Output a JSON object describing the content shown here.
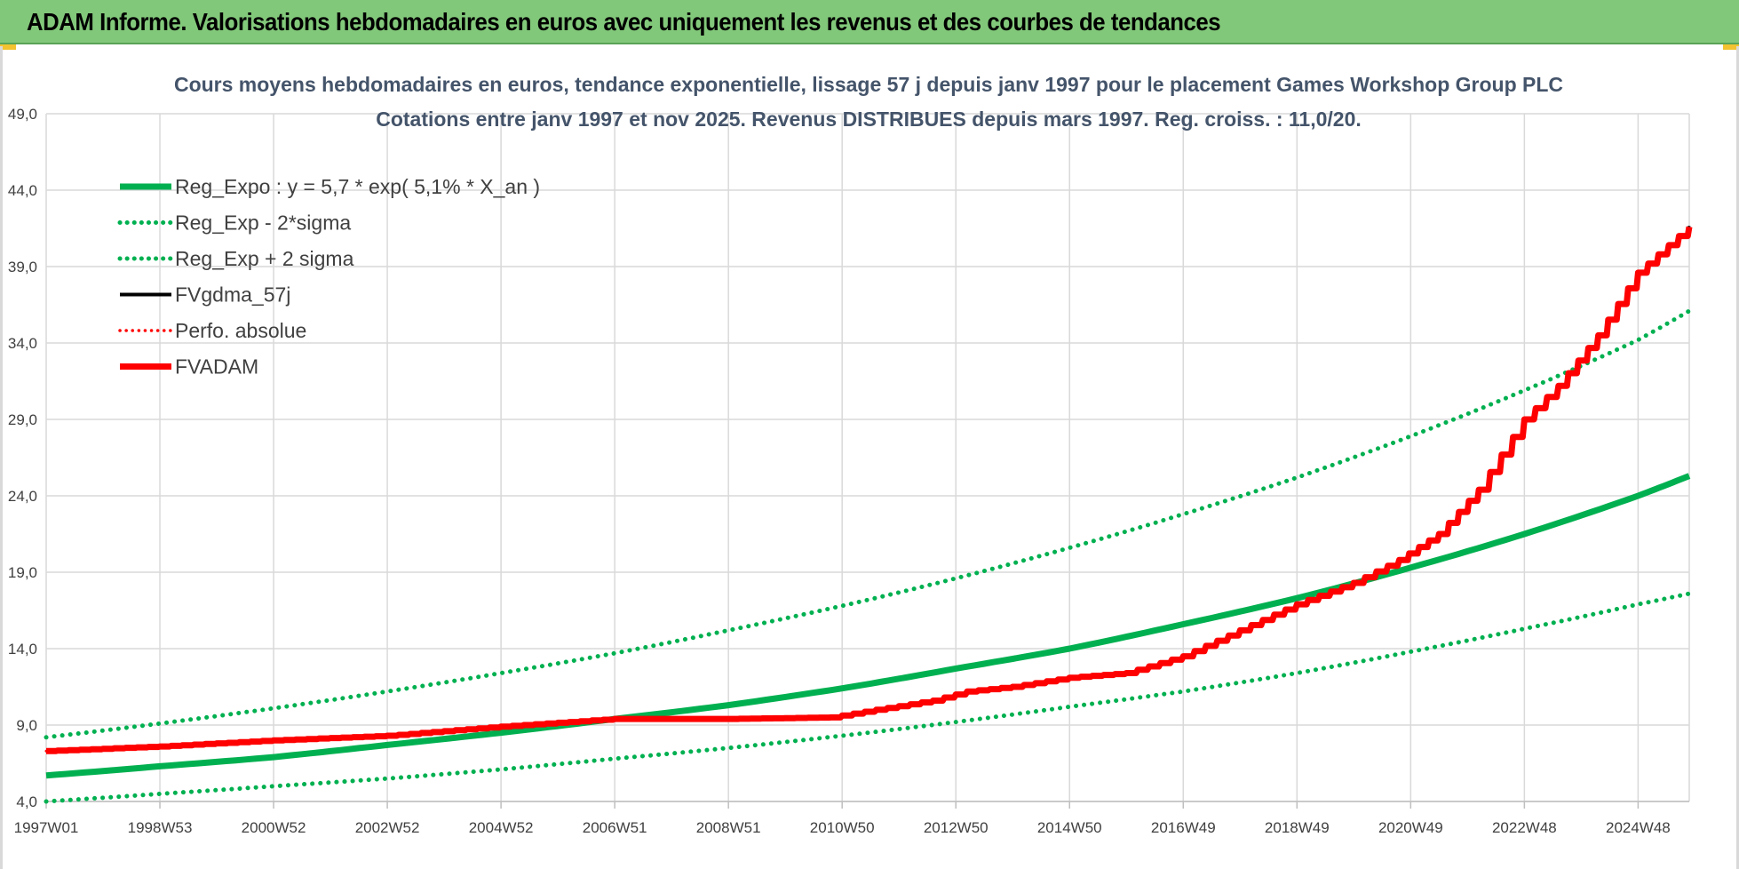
{
  "header": {
    "title": "ADAM Informe. Valorisations hebdomadaires en euros avec uniquement les revenus et des courbes de tendances"
  },
  "chart_data": {
    "type": "line",
    "title": [
      "Cours moyens hebdomadaires en euros, tendance exponentielle, lissage 57 j depuis janv 1997 pour le placement Games Workshop Group PLC",
      "Cotations entre janv 1997 et nov 2025. Revenus DISTRIBUES depuis mars 1997. Reg. croiss. : 11,0/20."
    ],
    "xlabel": "",
    "ylabel": "",
    "ylim": [
      4.0,
      49.0
    ],
    "xlim": [
      1997.0,
      2025.9
    ],
    "y_ticks": [
      "4,0",
      "9,0",
      "14,0",
      "19,0",
      "24,0",
      "29,0",
      "34,0",
      "39,0",
      "44,0",
      "49,0"
    ],
    "y_tick_values": [
      4,
      9,
      14,
      19,
      24,
      29,
      34,
      39,
      44,
      49
    ],
    "x_ticks": [
      "1997W01",
      "1998W53",
      "2000W52",
      "2002W52",
      "2004W52",
      "2006W51",
      "2008W51",
      "2010W50",
      "2012W50",
      "2014W50",
      "2016W49",
      "2018W49",
      "2020W49",
      "2022W48",
      "2024W48"
    ],
    "x_tick_values": [
      1997.0,
      1999.0,
      2001.0,
      2003.0,
      2005.0,
      2007.0,
      2009.0,
      2011.0,
      2013.0,
      2015.0,
      2017.0,
      2019.0,
      2021.0,
      2023.0,
      2025.0
    ],
    "grid": true,
    "legend_position": "top-left",
    "series": [
      {
        "name": "Reg_Expo : y = 5,7 * exp( 5,1% *  X_an )",
        "color": "#00b050",
        "style": "solid",
        "width": 7,
        "x": [
          1997,
          1999,
          2001,
          2003,
          2005,
          2007,
          2009,
          2011,
          2013,
          2015,
          2017,
          2019,
          2021,
          2023,
          2025,
          2025.9
        ],
        "y": [
          5.7,
          6.3,
          6.9,
          7.7,
          8.5,
          9.4,
          10.3,
          11.4,
          12.7,
          14.0,
          15.6,
          17.3,
          19.3,
          21.5,
          24.0,
          25.3
        ]
      },
      {
        "name": "Reg_Exp - 2*sigma",
        "color": "#00b050",
        "style": "dotted",
        "width": 5,
        "x": [
          1997,
          1999,
          2001,
          2003,
          2005,
          2007,
          2009,
          2011,
          2013,
          2015,
          2017,
          2019,
          2021,
          2023,
          2025,
          2025.9
        ],
        "y": [
          4.0,
          4.5,
          5.0,
          5.5,
          6.1,
          6.8,
          7.5,
          8.3,
          9.2,
          10.2,
          11.2,
          12.4,
          13.8,
          15.3,
          16.9,
          17.6
        ]
      },
      {
        "name": "Reg_Exp + 2 sigma",
        "color": "#00b050",
        "style": "dotted",
        "width": 5,
        "x": [
          1997,
          1999,
          2001,
          2003,
          2005,
          2007,
          2009,
          2011,
          2013,
          2015,
          2017,
          2019,
          2021,
          2023,
          2025,
          2025.9
        ],
        "y": [
          8.2,
          9.1,
          10.1,
          11.2,
          12.4,
          13.7,
          15.2,
          16.8,
          18.6,
          20.6,
          22.8,
          25.2,
          27.9,
          30.9,
          34.2,
          36.1
        ]
      },
      {
        "name": "FVgdma_57j",
        "color": "#000000",
        "style": "solid",
        "width": 3,
        "x": [
          1997,
          1999,
          2001,
          2003,
          2005,
          2007,
          2009,
          2010.8,
          2011.6,
          2012.6,
          2013.2,
          2014.0,
          2015.0,
          2016.0,
          2017.0,
          2018.0,
          2019.0,
          2020.0,
          2020.8,
          2021.5,
          2022.2,
          2023.0,
          2023.6,
          2024.3,
          2025.0,
          2025.9
        ],
        "y": [
          7.3,
          7.6,
          8.0,
          8.3,
          8.9,
          9.4,
          9.4,
          9.5,
          10.0,
          10.6,
          11.2,
          11.5,
          12.1,
          12.4,
          13.5,
          15.2,
          16.9,
          18.3,
          19.8,
          21.5,
          24.4,
          29.0,
          31.2,
          34.5,
          38.6,
          41.6
        ]
      },
      {
        "name": "Perfo. absolue",
        "color": "#ff0000",
        "style": "dotted",
        "width": 3,
        "x": [
          1997,
          1999,
          2001,
          2003,
          2005,
          2007,
          2009,
          2010.8,
          2011.6,
          2012.6,
          2013.2,
          2014.0,
          2015.0,
          2016.0,
          2017.0,
          2018.0,
          2019.0,
          2020.0,
          2020.8,
          2021.5,
          2022.2,
          2023.0,
          2023.6,
          2024.3,
          2025.0,
          2025.9
        ],
        "y": [
          7.3,
          7.6,
          8.0,
          8.3,
          8.9,
          9.4,
          9.4,
          9.5,
          10.0,
          10.6,
          11.2,
          11.5,
          12.1,
          12.4,
          13.5,
          15.2,
          16.9,
          18.3,
          19.8,
          21.5,
          24.4,
          29.0,
          31.2,
          34.5,
          38.6,
          41.6
        ]
      },
      {
        "name": "FVADAM",
        "color": "#ff0000",
        "style": "solid",
        "width": 7,
        "x": [
          1997,
          1999,
          2001,
          2003,
          2005,
          2007,
          2009,
          2010.8,
          2011.6,
          2012.6,
          2013.2,
          2014.0,
          2015.0,
          2016.0,
          2017.0,
          2018.0,
          2019.0,
          2020.0,
          2020.8,
          2021.5,
          2022.2,
          2023.0,
          2023.6,
          2024.3,
          2025.0,
          2025.9
        ],
        "y": [
          7.3,
          7.6,
          8.0,
          8.3,
          8.9,
          9.4,
          9.4,
          9.5,
          10.0,
          10.6,
          11.2,
          11.5,
          12.1,
          12.4,
          13.5,
          15.2,
          16.9,
          18.3,
          19.8,
          21.5,
          24.4,
          29.0,
          31.2,
          34.5,
          38.6,
          41.6
        ]
      }
    ]
  }
}
